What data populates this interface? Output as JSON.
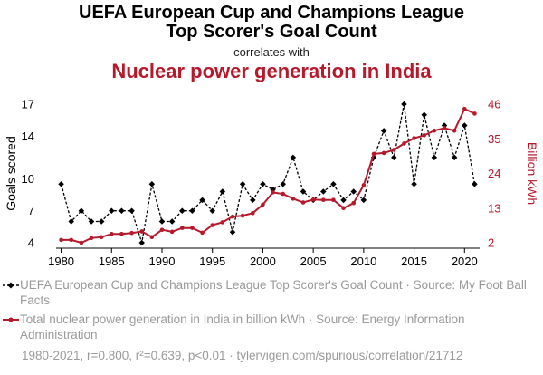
{
  "header": {
    "title_line1": "UEFA European Cup and Champions League",
    "title_line2": "Top Scorer's Goal Count",
    "correlates": "correlates with",
    "title2": "Nuclear power generation in India"
  },
  "legend": {
    "series1": "UEFA European Cup and Champions League Top Scorer's Goal Count · Source: My Foot Ball Facts",
    "series2": "Total nuclear power generation in India in billion kWh · Source: Energy Information Administration"
  },
  "footer": "1980-2021, r=0.800, r²=0.639, p<0.01 · tylervigen.com/spurious/correlation/21712",
  "colors": {
    "goals": "#000000",
    "nuclear": "#b5192b"
  },
  "chart_data": {
    "type": "line",
    "x": [
      1980,
      1981,
      1982,
      1983,
      1984,
      1985,
      1986,
      1987,
      1988,
      1989,
      1990,
      1991,
      1992,
      1993,
      1994,
      1995,
      1996,
      1997,
      1998,
      1999,
      2000,
      2001,
      2002,
      2003,
      2004,
      2005,
      2006,
      2007,
      2008,
      2009,
      2010,
      2011,
      2012,
      2013,
      2014,
      2015,
      2016,
      2017,
      2018,
      2019,
      2020,
      2021
    ],
    "xticks": [
      1980,
      1985,
      1990,
      1995,
      2000,
      2005,
      2010,
      2015,
      2020
    ],
    "xlim": [
      1979.5,
      2021.5
    ],
    "ylabel": "Goals scored",
    "y2label": "Billion kWh",
    "ylim": [
      4,
      17
    ],
    "yticks": [
      4,
      7,
      10,
      14,
      17
    ],
    "y2lim": [
      2,
      46
    ],
    "y2ticks": [
      2,
      13,
      24,
      35,
      46
    ],
    "grid": false,
    "legend_position": "bottom",
    "series": [
      {
        "name": "UEFA European Cup and Champions League Top Scorer's Goal Count",
        "axis": "left",
        "style": "dashed-diamond",
        "values": [
          9.5,
          6,
          7,
          6,
          6,
          7,
          7,
          7,
          4,
          9.5,
          6,
          6,
          7,
          7,
          8,
          7,
          8.8,
          5,
          9.5,
          8,
          9.5,
          9,
          9.5,
          12,
          8.8,
          8,
          8.8,
          9.5,
          8,
          8.8,
          8,
          12,
          14.5,
          12,
          17,
          9.5,
          16,
          12,
          15,
          12,
          15,
          9.5
        ]
      },
      {
        "name": "Total nuclear power generation in India in billion kWh",
        "axis": "right",
        "style": "solid-dot",
        "values": [
          2.9,
          2.9,
          2,
          3.5,
          3.8,
          4.8,
          4.8,
          5.1,
          5.6,
          3.8,
          6.1,
          5.5,
          6.7,
          6.7,
          5.2,
          7.6,
          8.5,
          10.3,
          10.6,
          11.4,
          14.1,
          18,
          17.5,
          16,
          14.8,
          15.7,
          15.6,
          15.6,
          13,
          14.6,
          20.3,
          30.2,
          30.5,
          31.5,
          33.5,
          35.2,
          36.1,
          37.6,
          38.4,
          37.6,
          44.5,
          43
        ]
      }
    ]
  }
}
